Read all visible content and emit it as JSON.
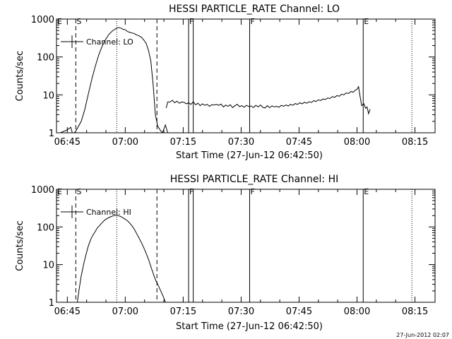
{
  "chart_data": [
    {
      "type": "line",
      "title": "HESSI PARTICLE_RATE Channel: LO",
      "xlabel": "Start Time (27-Jun-12 06:42:50)",
      "ylabel": "Counts/sec",
      "yscale": "log",
      "ylim": [
        1,
        1000
      ],
      "xlim_minutes": [
        -2.8,
        95.2
      ],
      "x_tick_labels": [
        "06:45",
        "07:00",
        "07:15",
        "07:30",
        "07:45",
        "08:00",
        "08:15"
      ],
      "x_tick_minutes": [
        0,
        15,
        30,
        45,
        60,
        75,
        90
      ],
      "y_tick_labels": [
        "1",
        "10",
        "100",
        "1000"
      ],
      "y_tick_values": [
        1,
        10,
        100,
        1000
      ],
      "legend": "Channel: LO",
      "markers": [
        {
          "label": "E",
          "minute": -2.8,
          "style": "dotted"
        },
        {
          "label": "S",
          "minute": 2.2,
          "style": "dashed"
        },
        {
          "label": "",
          "minute": 12.8,
          "style": "dotted"
        },
        {
          "label": "",
          "minute": 23.2,
          "style": "dashed"
        },
        {
          "label": "F",
          "minute": 31.4,
          "style": "solid"
        },
        {
          "label": "",
          "minute": 32.6,
          "style": "solid"
        },
        {
          "label": "F",
          "minute": 47.2,
          "style": "solid"
        },
        {
          "label": "E",
          "minute": 76.6,
          "style": "solid"
        },
        {
          "label": "",
          "minute": 89.2,
          "style": "dotted"
        }
      ],
      "series": [
        {
          "name": "Channel: LO",
          "segments": [
            [
              [
                -1.8,
                1
              ],
              [
                0,
                1.2
              ],
              [
                0.9,
                1.4
              ],
              [
                1.3,
                1
              ],
              [
                1.8,
                1
              ],
              [
                2.4,
                1.2
              ],
              [
                3.6,
                2
              ],
              [
                4.5,
                4
              ],
              [
                5.4,
                10
              ],
              [
                6.3,
                25
              ],
              [
                7.2,
                55
              ],
              [
                8.1,
                110
              ],
              [
                9.0,
                190
              ],
              [
                9.9,
                290
              ],
              [
                10.8,
                400
              ],
              [
                11.7,
                490
              ],
              [
                12.6,
                560
              ],
              [
                13.2,
                600
              ],
              [
                13.8,
                580
              ],
              [
                14.4,
                540
              ],
              [
                15.0,
                520
              ],
              [
                15.6,
                470
              ],
              [
                16.2,
                445
              ],
              [
                16.8,
                430
              ],
              [
                17.4,
                410
              ],
              [
                18.0,
                380
              ],
              [
                18.6,
                360
              ],
              [
                19.2,
                330
              ],
              [
                19.8,
                280
              ],
              [
                20.4,
                230
              ],
              [
                21.0,
                150
              ],
              [
                21.6,
                80
              ],
              [
                22.2,
                20
              ],
              [
                22.8,
                3
              ],
              [
                23.4,
                1.5
              ],
              [
                24.0,
                1.2
              ],
              [
                24.6,
                1
              ],
              [
                25.4,
                1.6
              ],
              [
                26.0,
                1
              ]
            ],
            [
              [
                25.6,
                4.5
              ],
              [
                26.0,
                6.5
              ],
              [
                26.6,
                6.5
              ],
              [
                27.2,
                7.2
              ],
              [
                27.8,
                6.2
              ],
              [
                28.4,
                6.8
              ],
              [
                29.0,
                6.0
              ],
              [
                29.6,
                6.5
              ],
              [
                30.2,
                6.4
              ],
              [
                30.8,
                5.8
              ],
              [
                31.4,
                6.2
              ],
              [
                32.0,
                5.6
              ],
              [
                32.6,
                6.6
              ],
              [
                33.2,
                5.5
              ],
              [
                33.8,
                6.0
              ],
              [
                34.4,
                5.2
              ],
              [
                35.0,
                5.8
              ],
              [
                35.6,
                5.3
              ],
              [
                36.2,
                5.6
              ],
              [
                36.8,
                5.0
              ],
              [
                37.4,
                5.5
              ],
              [
                38.0,
                5.4
              ],
              [
                38.6,
                5.6
              ],
              [
                39.2,
                5.3
              ],
              [
                39.8,
                5.7
              ],
              [
                40.4,
                4.8
              ],
              [
                41.0,
                5.4
              ],
              [
                41.6,
                5.0
              ],
              [
                42.2,
                5.5
              ],
              [
                42.8,
                4.6
              ],
              [
                43.4,
                5.2
              ],
              [
                44.0,
                5.6
              ],
              [
                44.6,
                4.9
              ],
              [
                45.2,
                5.2
              ],
              [
                45.8,
                4.7
              ],
              [
                46.4,
                5.3
              ],
              [
                47.0,
                4.9
              ],
              [
                47.6,
                5.1
              ],
              [
                48.2,
                4.6
              ],
              [
                48.8,
                5.3
              ],
              [
                49.4,
                4.8
              ],
              [
                50.0,
                5.4
              ],
              [
                50.6,
                4.7
              ],
              [
                51.2,
                4.5
              ],
              [
                51.8,
                5.2
              ],
              [
                52.4,
                4.6
              ],
              [
                53.0,
                5.1
              ],
              [
                53.6,
                4.8
              ],
              [
                54.2,
                5.0
              ],
              [
                54.8,
                4.7
              ],
              [
                55.4,
                5.3
              ],
              [
                56.0,
                5.0
              ],
              [
                56.6,
                5.4
              ],
              [
                57.2,
                5.1
              ],
              [
                57.8,
                5.6
              ],
              [
                58.4,
                5.3
              ],
              [
                59.0,
                5.9
              ],
              [
                59.6,
                5.6
              ],
              [
                60.2,
                6.2
              ],
              [
                60.8,
                5.8
              ],
              [
                61.4,
                6.4
              ],
              [
                62.0,
                6.0
              ],
              [
                62.6,
                6.6
              ],
              [
                63.2,
                6.3
              ],
              [
                63.8,
                7.0
              ],
              [
                64.4,
                6.7
              ],
              [
                65.0,
                7.4
              ],
              [
                65.6,
                7.1
              ],
              [
                66.2,
                7.8
              ],
              [
                66.8,
                7.5
              ],
              [
                67.4,
                8.3
              ],
              [
                68.0,
                8.0
              ],
              [
                68.6,
                9.0
              ],
              [
                69.2,
                8.6
              ],
              [
                69.8,
                9.6
              ],
              [
                70.4,
                9.2
              ],
              [
                71.0,
                10.4
              ],
              [
                71.6,
                10.0
              ],
              [
                72.2,
                11.3
              ],
              [
                72.8,
                10.8
              ],
              [
                73.4,
                12.3
              ],
              [
                74.0,
                11.8
              ],
              [
                74.6,
                13.4
              ],
              [
                75.0,
                14.0
              ],
              [
                75.4,
                16.5
              ],
              [
                75.8,
                9.0
              ],
              [
                76.2,
                5.2
              ],
              [
                76.8,
                5.8
              ],
              [
                77.2,
                4.4
              ],
              [
                77.6,
                4.8
              ],
              [
                78.0,
                3.2
              ],
              [
                78.4,
                4.2
              ]
            ]
          ]
        }
      ]
    },
    {
      "type": "line",
      "title": "HESSI PARTICLE_RATE Channel: HI",
      "xlabel": "Start Time (27-Jun-12 06:42:50)",
      "ylabel": "Counts/sec",
      "yscale": "log",
      "ylim": [
        1,
        1000
      ],
      "xlim_minutes": [
        -2.8,
        95.2
      ],
      "x_tick_labels": [
        "06:45",
        "07:00",
        "07:15",
        "07:30",
        "07:45",
        "08:00",
        "08:15"
      ],
      "x_tick_minutes": [
        0,
        15,
        30,
        45,
        60,
        75,
        90
      ],
      "y_tick_labels": [
        "1",
        "10",
        "100",
        "1000"
      ],
      "y_tick_values": [
        1,
        10,
        100,
        1000
      ],
      "legend": "Channel: HI",
      "markers": [
        {
          "label": "E",
          "minute": -2.8,
          "style": "dotted"
        },
        {
          "label": "S",
          "minute": 2.2,
          "style": "dashed"
        },
        {
          "label": "",
          "minute": 12.8,
          "style": "dotted"
        },
        {
          "label": "",
          "minute": 23.2,
          "style": "dashed"
        },
        {
          "label": "F",
          "minute": 31.4,
          "style": "solid"
        },
        {
          "label": "",
          "minute": 32.6,
          "style": "solid"
        },
        {
          "label": "F",
          "minute": 47.2,
          "style": "solid"
        },
        {
          "label": "E",
          "minute": 76.6,
          "style": "solid"
        },
        {
          "label": "",
          "minute": 89.2,
          "style": "dotted"
        }
      ],
      "series": [
        {
          "name": "Channel: HI",
          "segments": [
            [
              [
                2.6,
                1
              ],
              [
                3.0,
                2
              ],
              [
                3.6,
                5
              ],
              [
                4.2,
                10
              ],
              [
                4.8,
                18
              ],
              [
                5.4,
                30
              ],
              [
                6.0,
                45
              ],
              [
                6.6,
                60
              ],
              [
                7.2,
                75
              ],
              [
                7.8,
                95
              ],
              [
                8.4,
                110
              ],
              [
                9.0,
                130
              ],
              [
                9.6,
                150
              ],
              [
                10.2,
                165
              ],
              [
                10.8,
                178
              ],
              [
                11.4,
                190
              ],
              [
                12.0,
                200
              ],
              [
                12.6,
                205
              ],
              [
                13.2,
                200
              ],
              [
                13.8,
                190
              ],
              [
                14.4,
                175
              ],
              [
                15.0,
                160
              ],
              [
                15.6,
                145
              ],
              [
                16.2,
                125
              ],
              [
                16.8,
                105
              ],
              [
                17.4,
                85
              ],
              [
                18.0,
                65
              ],
              [
                18.6,
                50
              ],
              [
                19.2,
                38
              ],
              [
                19.8,
                28
              ],
              [
                20.4,
                20
              ],
              [
                21.0,
                14
              ],
              [
                21.6,
                9
              ],
              [
                22.2,
                6
              ],
              [
                22.8,
                4
              ],
              [
                23.4,
                3
              ],
              [
                24.0,
                2.2
              ],
              [
                24.6,
                1.6
              ],
              [
                25.0,
                1.3
              ],
              [
                25.4,
                1
              ]
            ]
          ]
        }
      ]
    }
  ],
  "footer": {
    "timestamp": "27-Jun-2012 02:07"
  }
}
